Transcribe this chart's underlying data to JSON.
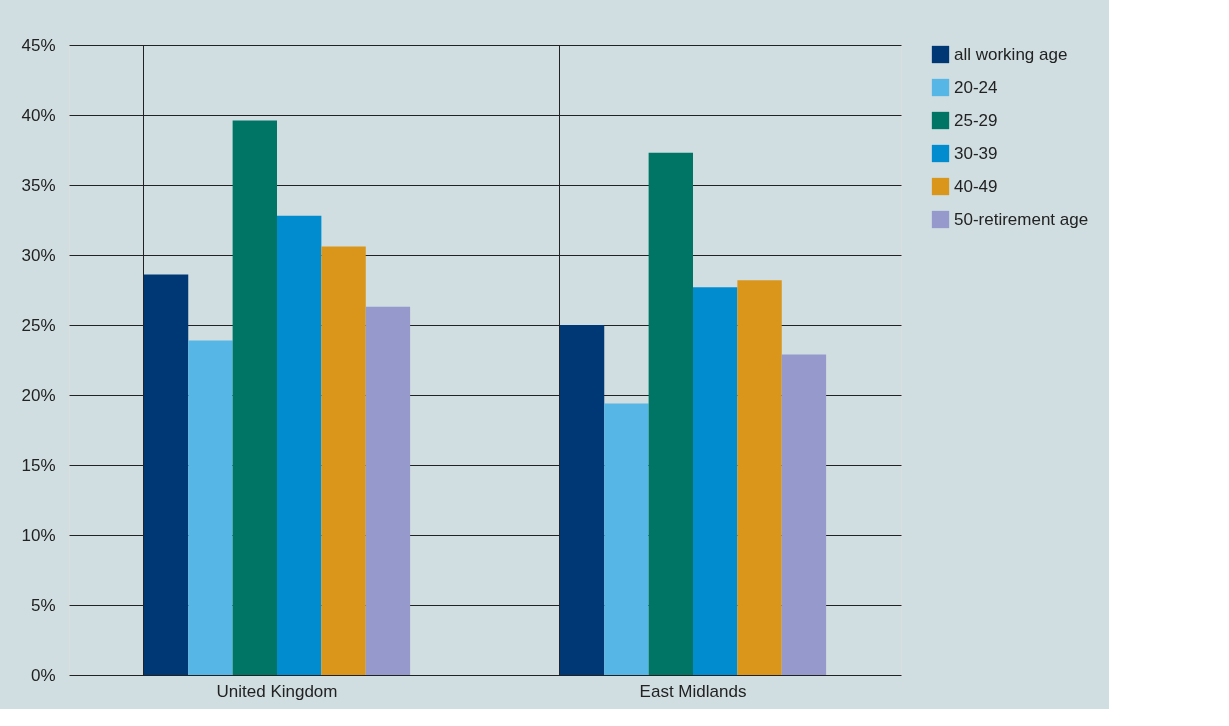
{
  "chart_data": {
    "type": "bar",
    "categories": [
      "United Kingdom",
      "East Midlands"
    ],
    "series": [
      {
        "name": "all working age",
        "color": "#003876",
        "values": [
          28.6,
          25.0
        ]
      },
      {
        "name": "20-24",
        "color": "#56b6e6",
        "values": [
          23.9,
          19.4
        ]
      },
      {
        "name": "25-29",
        "color": "#007566",
        "values": [
          39.6,
          37.3
        ]
      },
      {
        "name": "30-39",
        "color": "#008ccf",
        "values": [
          32.8,
          27.7
        ]
      },
      {
        "name": "40-49",
        "color": "#d9961a",
        "values": [
          30.6,
          28.2
        ]
      },
      {
        "name": "50-retirement age",
        "color": "#9599cc",
        "values": [
          26.3,
          22.9
        ]
      }
    ],
    "ylim": [
      0,
      45
    ],
    "yticks": [
      {
        "value": 0,
        "label": "0%"
      },
      {
        "value": 5,
        "label": "5%"
      },
      {
        "value": 10,
        "label": "10%"
      },
      {
        "value": 15,
        "label": "15%"
      },
      {
        "value": 20,
        "label": "20%"
      },
      {
        "value": 25,
        "label": "25%"
      },
      {
        "value": 30,
        "label": "30%"
      },
      {
        "value": 35,
        "label": "35%"
      },
      {
        "value": 40,
        "label": "40%"
      },
      {
        "value": 45,
        "label": "45%"
      }
    ],
    "grid": true,
    "legend": "top right"
  }
}
